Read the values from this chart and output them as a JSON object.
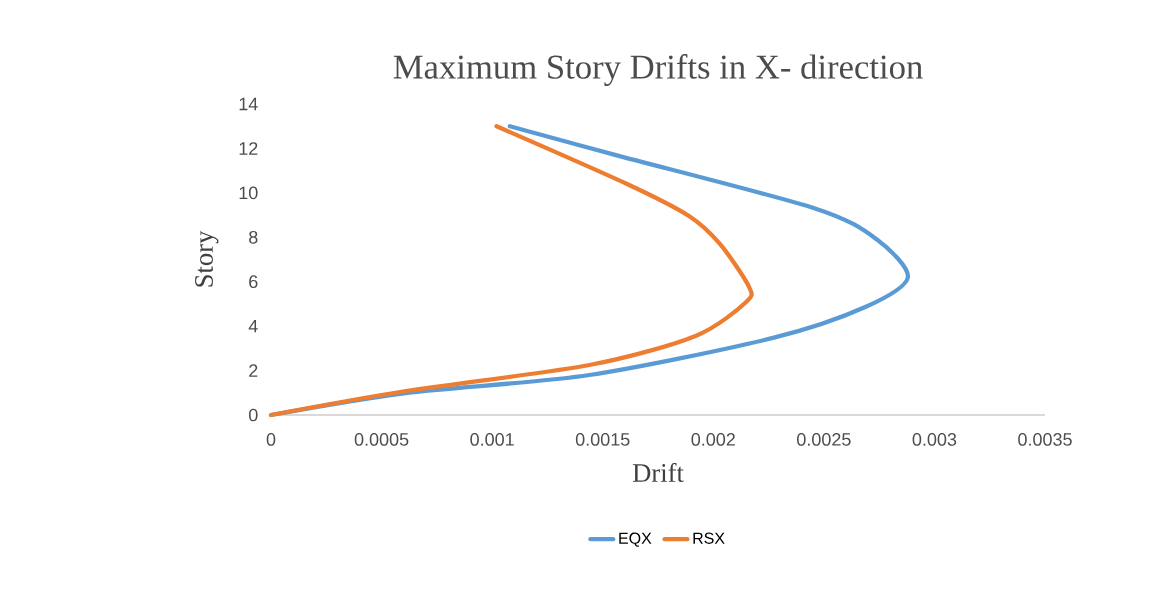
{
  "chart_data": {
    "type": "line",
    "title": "Maximum Story Drifts in X- direction",
    "xlabel": "Drift",
    "ylabel": "Story",
    "xlim": [
      0,
      0.0035
    ],
    "ylim": [
      0,
      14
    ],
    "xticks": [
      0,
      0.0005,
      0.001,
      0.0015,
      0.002,
      0.0025,
      0.003,
      0.0035
    ],
    "yticks": [
      0,
      2,
      4,
      6,
      8,
      10,
      12,
      14
    ],
    "grid": false,
    "legend": "bottom",
    "marker": "none",
    "line_style": "solid",
    "series": [
      {
        "name": "EQX",
        "color": "#5b9bd5",
        "x": [
          0,
          0.00061,
          0.00144,
          0.00227,
          0.00269,
          0.00288,
          0.00274,
          0.00246,
          0.00156,
          0.00108
        ],
        "values": [
          0,
          0.99,
          1.8,
          3.47,
          4.87,
          6.2,
          7.9,
          9.3,
          11.7,
          13
        ]
      },
      {
        "name": "RSX",
        "color": "#ed7d31",
        "x": [
          0,
          0.00061,
          0.00144,
          0.00192,
          0.00215,
          0.00216,
          0.00203,
          0.00189,
          0.00161,
          0.00102
        ],
        "values": [
          0,
          1.08,
          2.25,
          3.56,
          5.1,
          5.8,
          7.7,
          8.96,
          10.4,
          13
        ]
      }
    ]
  }
}
